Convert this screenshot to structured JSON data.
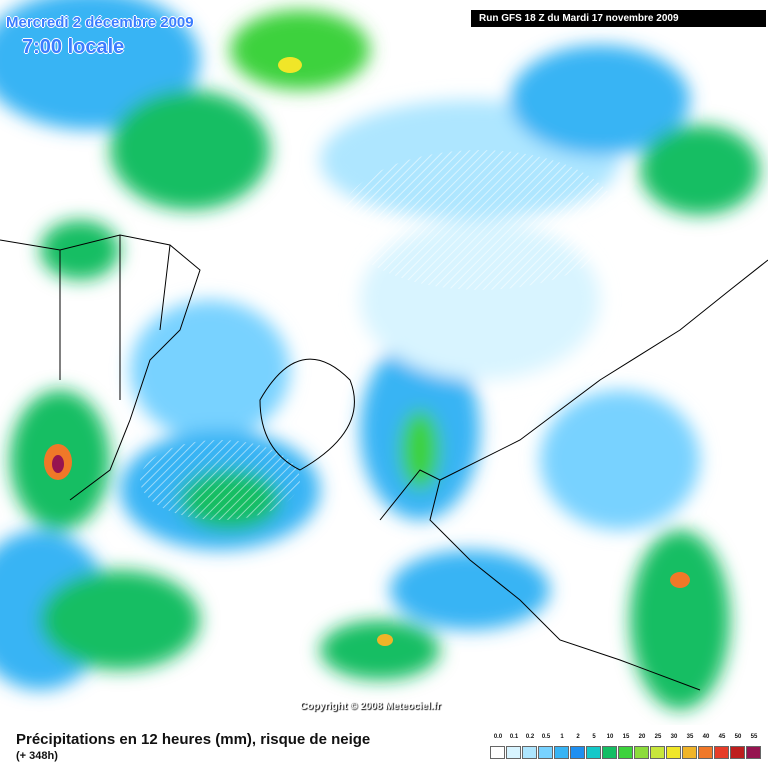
{
  "header": {
    "date": "Mercredi 2 décembre 2009",
    "time": "7:00 locale",
    "run": "Run GFS 18 Z du Mardi 17 novembre 2009"
  },
  "map": {
    "copyright": "Copyright © 2008 Meteociel.fr"
  },
  "footer": {
    "title": "Précipitations en 12 heures (mm), risque de neige",
    "lead": "(+ 348h)"
  },
  "legend": {
    "items": [
      {
        "label": "0.0",
        "color": "#ffffff"
      },
      {
        "label": "0.1",
        "color": "#d8f4ff"
      },
      {
        "label": "0.2",
        "color": "#aee6ff"
      },
      {
        "label": "0.5",
        "color": "#78d2ff"
      },
      {
        "label": "1",
        "color": "#38b4f4"
      },
      {
        "label": "2",
        "color": "#1f8ff0"
      },
      {
        "label": "5",
        "color": "#14c8c8"
      },
      {
        "label": "10",
        "color": "#14be64"
      },
      {
        "label": "15",
        "color": "#3cd23c"
      },
      {
        "label": "20",
        "color": "#8cdc3c"
      },
      {
        "label": "25",
        "color": "#c8e63c"
      },
      {
        "label": "30",
        "color": "#f0e628"
      },
      {
        "label": "35",
        "color": "#f0b428"
      },
      {
        "label": "40",
        "color": "#f07828"
      },
      {
        "label": "45",
        "color": "#e63c28"
      },
      {
        "label": "50",
        "color": "#be1e1e"
      },
      {
        "label": "55",
        "color": "#961450"
      }
    ]
  }
}
